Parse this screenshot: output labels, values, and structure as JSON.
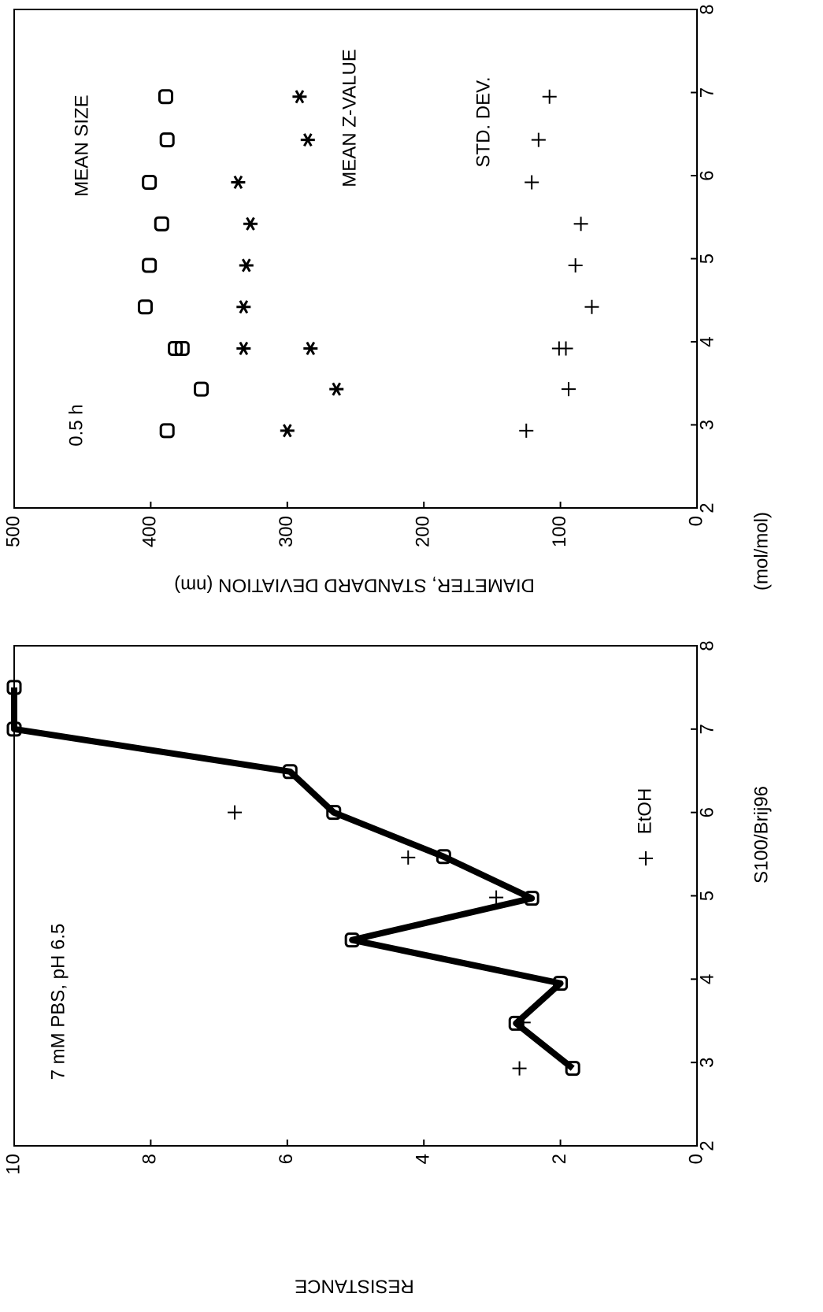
{
  "chart_data": [
    {
      "type": "line",
      "xlabel": "S100/Brij96",
      "ylabel": "RESISTANCE",
      "annotation": "7 mM PBS, pH 6.5",
      "xlim": [
        2,
        8
      ],
      "xticks": [
        2,
        3,
        4,
        5,
        6,
        7,
        8
      ],
      "ylim": [
        0,
        10
      ],
      "yticks": [
        0,
        2,
        4,
        6,
        8,
        10
      ],
      "series": [
        {
          "color": "#000000",
          "marker": "square",
          "line": true,
          "x": [
            2.93,
            3.47,
            3.95,
            4.47,
            4.97,
            5.47,
            6.0,
            6.49,
            7.0,
            7.5
          ],
          "values": [
            1.82,
            2.65,
            2.0,
            5.05,
            2.42,
            3.71,
            5.32,
            5.96,
            10,
            10
          ]
        },
        {
          "name": "EtOH",
          "color": "#000000",
          "marker": "plus",
          "line": false,
          "x": [
            2.93,
            3.48,
            4.98,
            5.46,
            6.0
          ],
          "values": [
            2.6,
            2.54,
            2.94,
            4.23,
            6.77
          ]
        }
      ]
    },
    {
      "type": "scatter",
      "xlabel": "(mol/mol)",
      "ylabel": "DIAMETER, STANDARD DEVIATION (nm)",
      "annotation": "0.5 h",
      "xlim": [
        2,
        8
      ],
      "xticks": [
        2,
        3,
        4,
        5,
        6,
        7,
        8
      ],
      "ylim": [
        0,
        500
      ],
      "yticks": [
        0,
        100,
        200,
        300,
        400,
        500
      ],
      "series": [
        {
          "name": "MEAN SIZE",
          "color": "#000000",
          "marker": "square",
          "x": [
            2.93,
            3.43,
            3.92,
            3.92,
            4.42,
            4.92,
            5.42,
            5.92,
            6.43,
            6.95
          ],
          "values": [
            388,
            363,
            382,
            377,
            404,
            401,
            392,
            401,
            388,
            389
          ]
        },
        {
          "name": "MEAN Z-VALUE",
          "color": "#000000",
          "marker": "asterisk",
          "x": [
            2.93,
            3.43,
            3.92,
            3.92,
            4.42,
            4.92,
            5.42,
            5.92,
            6.43,
            6.95
          ],
          "values": [
            300,
            264,
            332,
            283,
            332,
            330,
            327,
            336,
            285,
            291
          ]
        },
        {
          "name": "STD. DEV.",
          "color": "#000000",
          "marker": "plus",
          "x": [
            2.93,
            3.43,
            3.92,
            3.92,
            4.42,
            4.92,
            5.42,
            5.92,
            6.43,
            6.95
          ],
          "values": [
            125,
            94,
            101,
            96,
            77,
            89,
            85,
            121,
            116,
            108
          ]
        }
      ]
    }
  ]
}
